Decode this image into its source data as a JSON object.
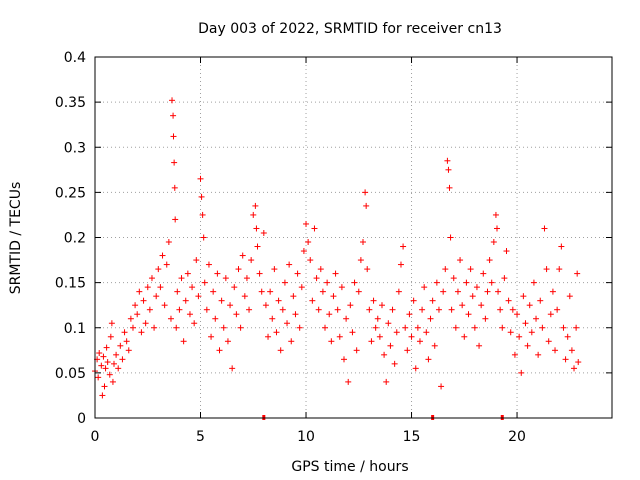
{
  "chart_data": {
    "type": "scatter",
    "title": "Day 003 of 2022, SRMTID for receiver cn13",
    "xlabel": "GPS time / hours",
    "ylabel": "SRMTID / TECUs",
    "xlim": [
      0,
      24.5
    ],
    "ylim": [
      0,
      0.4
    ],
    "xticks": [
      0,
      5,
      10,
      15,
      20
    ],
    "xtick_labels": [
      "0",
      "5",
      "10",
      "15",
      "20"
    ],
    "yticks": [
      0,
      0.05,
      0.1,
      0.15,
      0.2,
      0.25,
      0.3,
      0.35,
      0.4
    ],
    "ytick_labels": [
      "0",
      "0.05",
      "0.1",
      "0.15",
      "0.2",
      "0.25",
      "0.3",
      "0.35",
      "0.4"
    ],
    "grid": true,
    "marker": "plus",
    "color": "#ff0000",
    "series": [
      {
        "name": "SRMTID",
        "points": [
          [
            0.0,
            0.052
          ],
          [
            0.1,
            0.065
          ],
          [
            0.15,
            0.045
          ],
          [
            0.2,
            0.072
          ],
          [
            0.3,
            0.058
          ],
          [
            0.35,
            0.025
          ],
          [
            0.4,
            0.068
          ],
          [
            0.45,
            0.035
          ],
          [
            0.5,
            0.055
          ],
          [
            0.55,
            0.078
          ],
          [
            0.6,
            0.062
          ],
          [
            0.7,
            0.048
          ],
          [
            0.75,
            0.09
          ],
          [
            0.8,
            0.105
          ],
          [
            0.85,
            0.04
          ],
          [
            0.9,
            0.06
          ],
          [
            1.0,
            0.07
          ],
          [
            1.1,
            0.055
          ],
          [
            1.2,
            0.08
          ],
          [
            1.3,
            0.065
          ],
          [
            1.4,
            0.095
          ],
          [
            1.5,
            0.085
          ],
          [
            1.6,
            0.075
          ],
          [
            1.7,
            0.11
          ],
          [
            1.8,
            0.1
          ],
          [
            1.9,
            0.125
          ],
          [
            2.0,
            0.115
          ],
          [
            2.1,
            0.14
          ],
          [
            2.2,
            0.095
          ],
          [
            2.3,
            0.13
          ],
          [
            2.4,
            0.105
          ],
          [
            2.5,
            0.145
          ],
          [
            2.6,
            0.12
          ],
          [
            2.7,
            0.155
          ],
          [
            2.8,
            0.1
          ],
          [
            2.9,
            0.135
          ],
          [
            3.0,
            0.165
          ],
          [
            3.1,
            0.145
          ],
          [
            3.2,
            0.18
          ],
          [
            3.3,
            0.125
          ],
          [
            3.4,
            0.17
          ],
          [
            3.5,
            0.195
          ],
          [
            3.6,
            0.11
          ],
          [
            3.65,
            0.352
          ],
          [
            3.7,
            0.335
          ],
          [
            3.72,
            0.312
          ],
          [
            3.75,
            0.283
          ],
          [
            3.78,
            0.255
          ],
          [
            3.8,
            0.22
          ],
          [
            3.85,
            0.1
          ],
          [
            3.9,
            0.14
          ],
          [
            4.0,
            0.12
          ],
          [
            4.1,
            0.155
          ],
          [
            4.2,
            0.085
          ],
          [
            4.3,
            0.13
          ],
          [
            4.4,
            0.16
          ],
          [
            4.5,
            0.115
          ],
          [
            4.6,
            0.145
          ],
          [
            4.7,
            0.105
          ],
          [
            4.8,
            0.175
          ],
          [
            4.9,
            0.135
          ],
          [
            5.0,
            0.265
          ],
          [
            5.05,
            0.245
          ],
          [
            5.1,
            0.225
          ],
          [
            5.15,
            0.2
          ],
          [
            5.2,
            0.15
          ],
          [
            5.3,
            0.12
          ],
          [
            5.4,
            0.17
          ],
          [
            5.5,
            0.09
          ],
          [
            5.6,
            0.14
          ],
          [
            5.7,
            0.11
          ],
          [
            5.8,
            0.16
          ],
          [
            5.9,
            0.075
          ],
          [
            6.0,
            0.13
          ],
          [
            6.1,
            0.1
          ],
          [
            6.2,
            0.155
          ],
          [
            6.3,
            0.085
          ],
          [
            6.4,
            0.125
          ],
          [
            6.5,
            0.055
          ],
          [
            6.6,
            0.145
          ],
          [
            6.7,
            0.115
          ],
          [
            6.8,
            0.165
          ],
          [
            6.9,
            0.1
          ],
          [
            7.0,
            0.18
          ],
          [
            7.1,
            0.135
          ],
          [
            7.2,
            0.155
          ],
          [
            7.3,
            0.12
          ],
          [
            7.4,
            0.175
          ],
          [
            7.5,
            0.225
          ],
          [
            7.6,
            0.235
          ],
          [
            7.65,
            0.21
          ],
          [
            7.7,
            0.19
          ],
          [
            7.8,
            0.16
          ],
          [
            7.9,
            0.14
          ],
          [
            8.0,
            0.205
          ],
          [
            8.1,
            0.125
          ],
          [
            8.2,
            0.09
          ],
          [
            8.3,
            0.14
          ],
          [
            8.4,
            0.11
          ],
          [
            8.5,
            0.165
          ],
          [
            8.6,
            0.095
          ],
          [
            8.7,
            0.13
          ],
          [
            8.8,
            0.075
          ],
          [
            8.9,
            0.12
          ],
          [
            9.0,
            0.15
          ],
          [
            9.1,
            0.105
          ],
          [
            9.2,
            0.17
          ],
          [
            9.3,
            0.085
          ],
          [
            9.4,
            0.135
          ],
          [
            9.5,
            0.115
          ],
          [
            9.6,
            0.16
          ],
          [
            9.7,
            0.1
          ],
          [
            9.8,
            0.145
          ],
          [
            9.9,
            0.185
          ],
          [
            10.0,
            0.215
          ],
          [
            10.1,
            0.195
          ],
          [
            10.2,
            0.175
          ],
          [
            10.3,
            0.13
          ],
          [
            10.4,
            0.21
          ],
          [
            10.5,
            0.155
          ],
          [
            10.6,
            0.12
          ],
          [
            10.7,
            0.165
          ],
          [
            10.8,
            0.14
          ],
          [
            10.9,
            0.1
          ],
          [
            11.0,
            0.15
          ],
          [
            11.1,
            0.115
          ],
          [
            11.2,
            0.085
          ],
          [
            11.3,
            0.135
          ],
          [
            11.4,
            0.16
          ],
          [
            11.5,
            0.12
          ],
          [
            11.6,
            0.09
          ],
          [
            11.7,
            0.145
          ],
          [
            11.8,
            0.065
          ],
          [
            11.9,
            0.11
          ],
          [
            12.0,
            0.04
          ],
          [
            12.1,
            0.125
          ],
          [
            12.2,
            0.095
          ],
          [
            12.3,
            0.15
          ],
          [
            12.4,
            0.075
          ],
          [
            12.5,
            0.14
          ],
          [
            12.6,
            0.175
          ],
          [
            12.7,
            0.195
          ],
          [
            12.8,
            0.25
          ],
          [
            12.85,
            0.235
          ],
          [
            12.9,
            0.165
          ],
          [
            13.0,
            0.12
          ],
          [
            13.1,
            0.085
          ],
          [
            13.2,
            0.13
          ],
          [
            13.3,
            0.1
          ],
          [
            13.4,
            0.11
          ],
          [
            13.5,
            0.09
          ],
          [
            13.6,
            0.125
          ],
          [
            13.7,
            0.07
          ],
          [
            13.8,
            0.04
          ],
          [
            13.9,
            0.105
          ],
          [
            14.0,
            0.08
          ],
          [
            14.1,
            0.12
          ],
          [
            14.2,
            0.06
          ],
          [
            14.3,
            0.095
          ],
          [
            14.4,
            0.14
          ],
          [
            14.5,
            0.17
          ],
          [
            14.6,
            0.19
          ],
          [
            14.7,
            0.1
          ],
          [
            14.8,
            0.075
          ],
          [
            14.9,
            0.115
          ],
          [
            15.0,
            0.09
          ],
          [
            15.1,
            0.13
          ],
          [
            15.2,
            0.055
          ],
          [
            15.3,
            0.1
          ],
          [
            15.4,
            0.085
          ],
          [
            15.5,
            0.12
          ],
          [
            15.6,
            0.145
          ],
          [
            15.7,
            0.095
          ],
          [
            15.8,
            0.065
          ],
          [
            15.9,
            0.11
          ],
          [
            16.0,
            0.13
          ],
          [
            16.1,
            0.08
          ],
          [
            16.2,
            0.15
          ],
          [
            16.3,
            0.12
          ],
          [
            16.4,
            0.035
          ],
          [
            16.5,
            0.14
          ],
          [
            16.6,
            0.165
          ],
          [
            16.7,
            0.285
          ],
          [
            16.75,
            0.275
          ],
          [
            16.8,
            0.255
          ],
          [
            16.85,
            0.2
          ],
          [
            16.9,
            0.12
          ],
          [
            17.0,
            0.155
          ],
          [
            17.1,
            0.1
          ],
          [
            17.2,
            0.14
          ],
          [
            17.3,
            0.175
          ],
          [
            17.4,
            0.125
          ],
          [
            17.5,
            0.09
          ],
          [
            17.6,
            0.15
          ],
          [
            17.7,
            0.115
          ],
          [
            17.8,
            0.165
          ],
          [
            17.9,
            0.135
          ],
          [
            18.0,
            0.1
          ],
          [
            18.1,
            0.145
          ],
          [
            18.2,
            0.08
          ],
          [
            18.3,
            0.125
          ],
          [
            18.4,
            0.16
          ],
          [
            18.5,
            0.11
          ],
          [
            18.6,
            0.14
          ],
          [
            18.7,
            0.175
          ],
          [
            18.8,
            0.15
          ],
          [
            18.9,
            0.195
          ],
          [
            19.0,
            0.225
          ],
          [
            19.05,
            0.21
          ],
          [
            19.1,
            0.14
          ],
          [
            19.2,
            0.12
          ],
          [
            19.3,
            0.1
          ],
          [
            19.4,
            0.155
          ],
          [
            19.5,
            0.185
          ],
          [
            19.6,
            0.13
          ],
          [
            19.7,
            0.095
          ],
          [
            19.8,
            0.12
          ],
          [
            19.9,
            0.07
          ],
          [
            20.0,
            0.115
          ],
          [
            20.1,
            0.09
          ],
          [
            20.2,
            0.05
          ],
          [
            20.3,
            0.135
          ],
          [
            20.4,
            0.105
          ],
          [
            20.5,
            0.08
          ],
          [
            20.6,
            0.125
          ],
          [
            20.7,
            0.095
          ],
          [
            20.8,
            0.15
          ],
          [
            20.9,
            0.11
          ],
          [
            21.0,
            0.07
          ],
          [
            21.1,
            0.13
          ],
          [
            21.2,
            0.1
          ],
          [
            21.3,
            0.21
          ],
          [
            21.4,
            0.165
          ],
          [
            21.5,
            0.085
          ],
          [
            21.6,
            0.115
          ],
          [
            21.7,
            0.14
          ],
          [
            21.8,
            0.075
          ],
          [
            21.9,
            0.12
          ],
          [
            22.0,
            0.165
          ],
          [
            22.1,
            0.19
          ],
          [
            22.2,
            0.1
          ],
          [
            22.3,
            0.065
          ],
          [
            22.4,
            0.09
          ],
          [
            22.5,
            0.135
          ],
          [
            22.6,
            0.075
          ],
          [
            22.7,
            0.055
          ],
          [
            22.8,
            0.1
          ],
          [
            22.85,
            0.16
          ],
          [
            22.9,
            0.062
          ]
        ]
      }
    ],
    "x_axis_markers": [
      8.0,
      16.0,
      19.3
    ]
  }
}
